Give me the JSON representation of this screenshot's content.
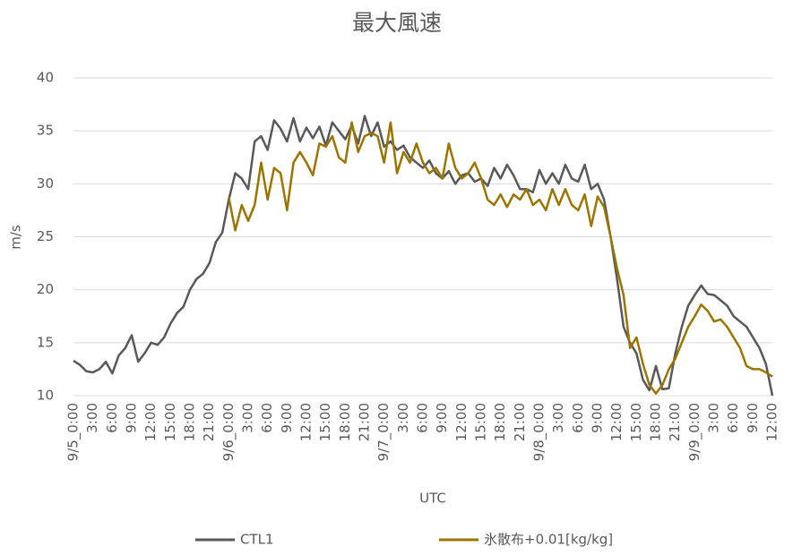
{
  "chart_data": {
    "type": "line",
    "title": "最大風速",
    "xlabel": "UTC",
    "ylabel": "m/s",
    "categories": [
      "9/5_0:00",
      null,
      null,
      "3:00",
      null,
      null,
      "6:00",
      null,
      null,
      "9:00",
      null,
      null,
      "12:00",
      null,
      null,
      "15:00",
      null,
      null,
      "18:00",
      null,
      null,
      "21:00",
      null,
      null,
      "9/6_0:00",
      null,
      null,
      "3:00",
      null,
      null,
      "6:00",
      null,
      null,
      "9:00",
      null,
      null,
      "12:00",
      null,
      null,
      "15:00",
      null,
      null,
      "18:00",
      null,
      null,
      "21:00",
      null,
      null,
      "9/7_0:00",
      null,
      null,
      "3:00",
      null,
      null,
      "6:00",
      null,
      null,
      "9:00",
      null,
      null,
      "12:00",
      null,
      null,
      "15:00",
      null,
      null,
      "18:00",
      null,
      null,
      "21:00",
      null,
      null,
      "9/8_0:00",
      null,
      null,
      "3:00",
      null,
      null,
      "6:00",
      null,
      null,
      "9:00",
      null,
      null,
      "12:00",
      null,
      null,
      "15:00",
      null,
      null,
      "18:00",
      null,
      null,
      "21:00",
      null,
      null,
      "9/9_0:00",
      null,
      null,
      "3:00",
      null,
      null,
      "6:00",
      null,
      null,
      "9:00",
      null,
      null,
      "12:00"
    ],
    "series": [
      {
        "name": "CTL1",
        "color": "#595959",
        "values": [
          13.3,
          12.9,
          12.3,
          12.2,
          12.5,
          13.2,
          12.1,
          13.8,
          14.5,
          15.7,
          13.2,
          14.0,
          15.0,
          14.8,
          15.5,
          16.8,
          17.8,
          18.4,
          20.0,
          21.0,
          21.5,
          22.5,
          24.5,
          25.4,
          28.5,
          31.0,
          30.5,
          29.5,
          34.0,
          34.5,
          33.2,
          36.0,
          35.2,
          34.0,
          36.2,
          34.0,
          35.3,
          34.3,
          35.4,
          33.6,
          35.8,
          35.0,
          34.2,
          35.5,
          33.8,
          36.4,
          34.5,
          35.8,
          33.5,
          34.0,
          33.2,
          33.6,
          32.5,
          32.0,
          31.5,
          32.2,
          31.0,
          30.5,
          31.2,
          30.0,
          30.8,
          31.0,
          30.2,
          30.5,
          29.8,
          31.5,
          30.5,
          31.8,
          30.8,
          29.5,
          29.5,
          29.2,
          31.3,
          30.0,
          31.0,
          30.0,
          31.8,
          30.5,
          30.2,
          31.8,
          29.5,
          30.0,
          28.5,
          25.0,
          21.0,
          16.5,
          15.0,
          14.0,
          11.5,
          10.5,
          12.8,
          10.6,
          10.7,
          14.0,
          16.5,
          18.5,
          19.5,
          20.4,
          19.6,
          19.5,
          19.0,
          18.5,
          17.5,
          17.0,
          16.5,
          15.5,
          14.5,
          13.0,
          10.0
        ]
      },
      {
        "name": "氷散布+0.01[kg/kg]",
        "color": "#9c7400",
        "values": [
          null,
          null,
          null,
          null,
          null,
          null,
          null,
          null,
          null,
          null,
          null,
          null,
          null,
          null,
          null,
          null,
          null,
          null,
          null,
          null,
          null,
          null,
          null,
          null,
          28.7,
          25.6,
          28.0,
          26.5,
          28.0,
          32.0,
          28.5,
          31.5,
          31.0,
          27.5,
          32.0,
          33.0,
          32.0,
          30.8,
          33.8,
          33.5,
          34.5,
          32.5,
          32.0,
          35.8,
          33.0,
          34.5,
          34.8,
          34.5,
          32.0,
          35.8,
          31.0,
          33.0,
          32.0,
          33.8,
          32.0,
          31.0,
          31.5,
          30.5,
          33.8,
          31.5,
          30.5,
          31.0,
          32.0,
          30.5,
          28.5,
          28.0,
          29.0,
          27.8,
          29.0,
          28.5,
          29.5,
          28.0,
          28.5,
          27.5,
          29.5,
          28.0,
          29.5,
          28.0,
          27.5,
          29.0,
          26.0,
          28.8,
          27.8,
          25.0,
          22.0,
          19.5,
          14.5,
          15.5,
          13.0,
          11.0,
          10.2,
          11.0,
          12.5,
          13.5,
          15.0,
          16.5,
          17.5,
          18.6,
          18.0,
          17.0,
          17.2,
          16.5,
          15.5,
          14.5,
          12.8,
          12.5,
          12.5,
          12.2,
          11.8
        ]
      }
    ],
    "ylim": [
      10,
      40
    ],
    "yticks": [
      10,
      15,
      20,
      25,
      30,
      35,
      40
    ],
    "grid": true,
    "legend": "bottom"
  }
}
